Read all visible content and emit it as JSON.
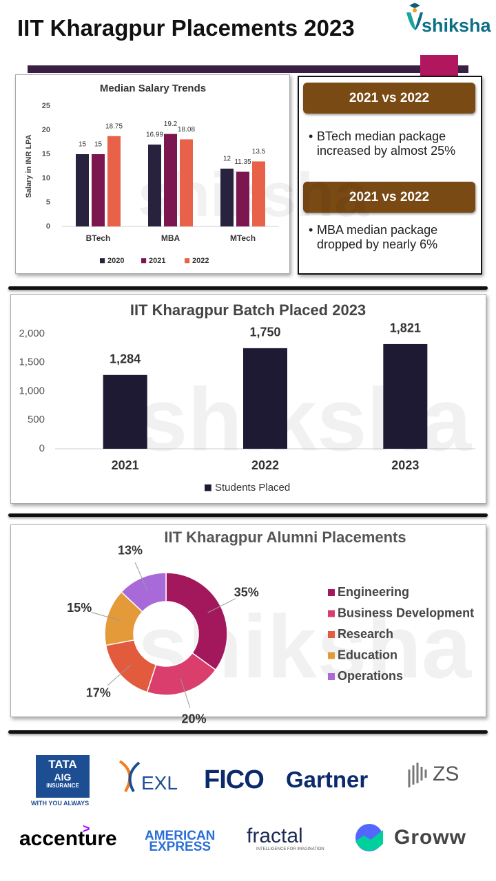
{
  "header": {
    "title": "IIT Kharagpur Placements 2023",
    "logo": "shiksha"
  },
  "watermark": "shiksha",
  "comparisons": [
    {
      "heading": "2021 vs 2022",
      "text": "BTech median package increased by almost 25%"
    },
    {
      "heading": "2021 vs 2022",
      "text": "MBA median package dropped  by nearly 6%"
    }
  ],
  "chart_data": [
    {
      "type": "bar",
      "title": "Median Salary Trends",
      "y_label": "Salary in INR LPA",
      "categories": [
        "BTech",
        "MBA",
        "MTech"
      ],
      "series": [
        {
          "name": "2020",
          "color": "#29223f",
          "values": [
            15,
            16.99,
            12
          ]
        },
        {
          "name": "2021",
          "color": "#7b1650",
          "values": [
            15,
            19.2,
            11.35
          ]
        },
        {
          "name": "2022",
          "color": "#e8624a",
          "values": [
            18.75,
            18.08,
            13.5
          ]
        }
      ],
      "ylim": [
        0,
        25
      ],
      "yticks": [
        0,
        5,
        10,
        15,
        20,
        25
      ],
      "grid": false,
      "legend": "bottom"
    },
    {
      "type": "bar",
      "title": "IIT Kharagpur Batch Placed 2023",
      "categories": [
        "2021",
        "2022",
        "2023"
      ],
      "series": [
        {
          "name": "Students Placed",
          "color": "#1e1a33",
          "values": [
            1284,
            1750,
            1821
          ],
          "value_labels": [
            "1,284",
            "1,750",
            "1,821"
          ]
        }
      ],
      "ylim": [
        0,
        2000
      ],
      "yticks": [
        0,
        500,
        {
          "value": 1000,
          "label": "1,000"
        },
        {
          "value": 1500,
          "label": "1,500"
        },
        {
          "value": 2000,
          "label": "2,000"
        }
      ],
      "grid": false,
      "legend": "bottom"
    },
    {
      "type": "donut",
      "title": "IIT Kharagpur Alumni Placements",
      "categories": [
        "Engineering",
        "Business Development",
        "Research",
        "Education",
        "Operations"
      ],
      "values": [
        35,
        20,
        17,
        15,
        13
      ],
      "value_labels": [
        "35%",
        "20%",
        "17%",
        "15%",
        "13%"
      ],
      "colors": [
        "#a3185c",
        "#d93e6d",
        "#e15b3c",
        "#e59a3a",
        "#a86ad8"
      ],
      "legend": "right"
    }
  ],
  "logos": [
    {
      "name": "TATA",
      "sub": "AIG",
      "detail": "INSURANCE",
      "tagline": "WITH YOU ALWAYS"
    },
    {
      "name": "EXL"
    },
    {
      "name": "FICO"
    },
    {
      "name": "Gartner"
    },
    {
      "name": "ZS"
    },
    {
      "name": "accenture"
    },
    {
      "name": "AMERICAN",
      "sub": "EXPRESS"
    },
    {
      "name": "fractal",
      "tagline": "INTELLIGENCE FOR IMAGINATION"
    },
    {
      "name": "Groww"
    }
  ]
}
